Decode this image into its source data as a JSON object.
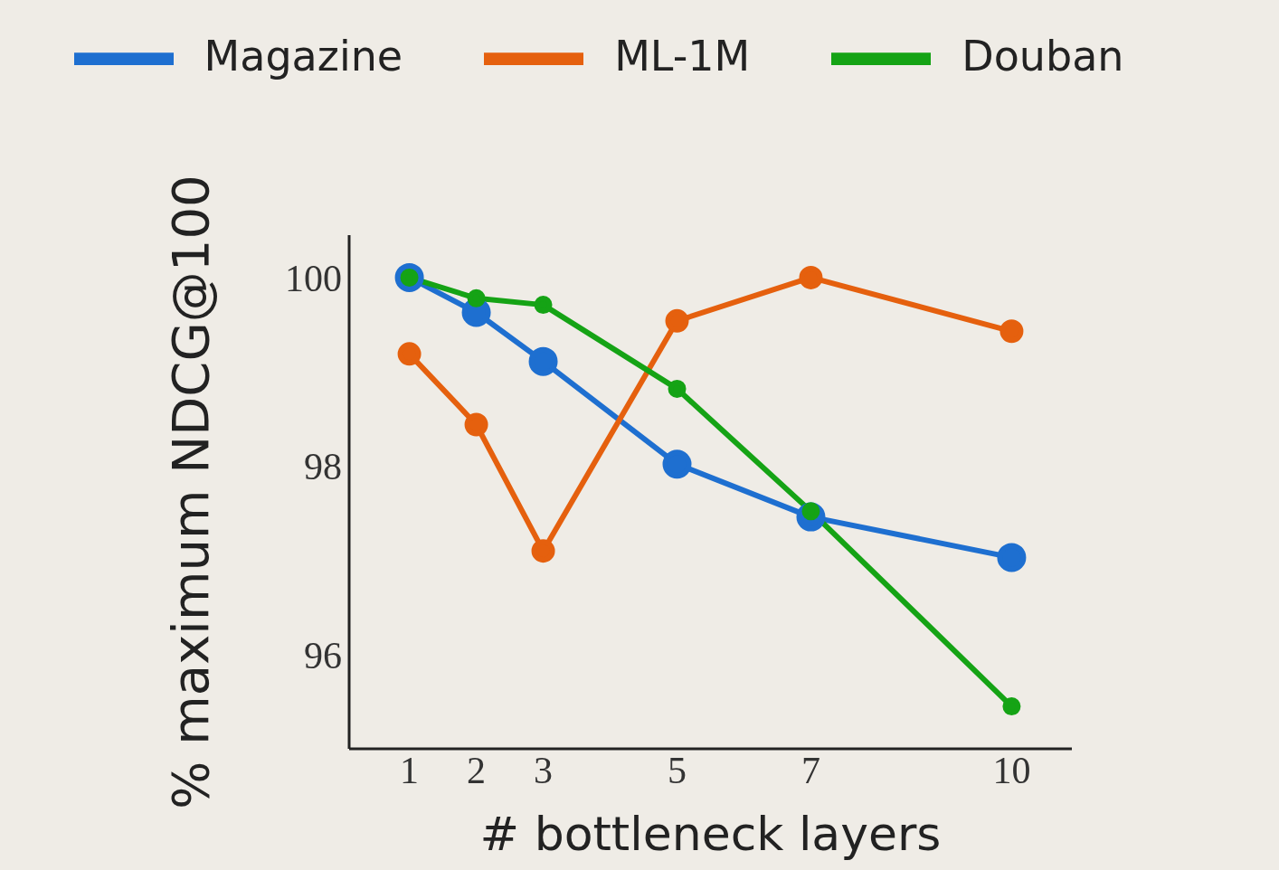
{
  "chart_data": {
    "type": "line",
    "xlabel": "# bottleneck layers",
    "ylabel": "% maximum NDCG@100",
    "x": [
      1,
      2,
      3,
      5,
      7,
      10
    ],
    "series": [
      {
        "name": "Magazine",
        "color": "#1e6fd0",
        "values": [
          100,
          99.63,
          99.11,
          98.02,
          97.46,
          97.03
        ]
      },
      {
        "name": "ML-1M",
        "color": "#e5600e",
        "values": [
          99.19,
          98.44,
          97.1,
          99.54,
          100,
          99.43
        ]
      },
      {
        "name": "Douban",
        "color": "#15a315",
        "values": [
          100,
          99.78,
          99.71,
          98.82,
          97.52,
          95.45
        ]
      }
    ],
    "xlim": [
      0.1,
      10.9
    ],
    "xticks": [
      1,
      2,
      3,
      5,
      7,
      10
    ],
    "ylim": [
      95,
      100.45
    ],
    "yticks": [
      96,
      98,
      100
    ],
    "grid": false,
    "legend": "top",
    "marker": "circle",
    "line_style": "solid"
  }
}
